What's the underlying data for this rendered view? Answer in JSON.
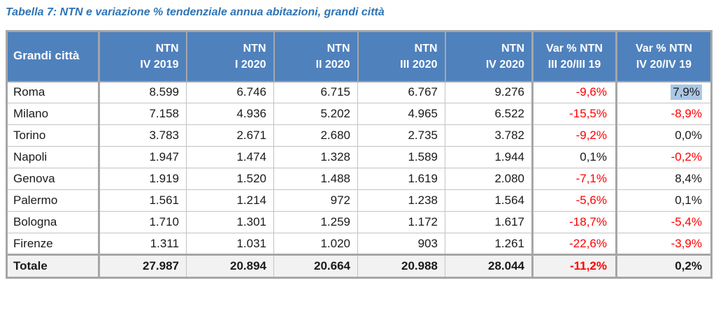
{
  "colors": {
    "header_bg": "#4F81BD",
    "header_text": "#FFFFFF",
    "title_text": "#2E74B5",
    "negative_text": "#FF0000",
    "highlight_bg": "#A9C7E4",
    "border_thick": "#A6A6A6",
    "border_thin": "#C3C3C3",
    "total_bg": "#F2F2F2"
  },
  "chart_data": {
    "type": "table",
    "title": "Tabella 7: NTN e variazione % tendenziale annua abitazioni, grandi città",
    "header": {
      "city": "Grandi città",
      "cols": [
        {
          "l1": "NTN",
          "l2": "IV 2019"
        },
        {
          "l1": "NTN",
          "l2": "I 2020"
        },
        {
          "l1": "NTN",
          "l2": "II 2020"
        },
        {
          "l1": "NTN",
          "l2": "III 2020"
        },
        {
          "l1": "NTN",
          "l2": "IV 2020"
        },
        {
          "l1": "Var % NTN",
          "l2": "III 20/III 19"
        },
        {
          "l1": "Var % NTN",
          "l2": "IV 20/IV 19"
        }
      ]
    },
    "rows": [
      {
        "city": "Roma",
        "ntn": [
          "8.599",
          "6.746",
          "6.715",
          "6.767",
          "9.276"
        ],
        "var3": {
          "text": "-9,6%",
          "neg": true
        },
        "var4": {
          "text": "7,9%",
          "neg": false,
          "hl": true
        }
      },
      {
        "city": "Milano",
        "ntn": [
          "7.158",
          "4.936",
          "5.202",
          "4.965",
          "6.522"
        ],
        "var3": {
          "text": "-15,5%",
          "neg": true
        },
        "var4": {
          "text": "-8,9%",
          "neg": true
        }
      },
      {
        "city": "Torino",
        "ntn": [
          "3.783",
          "2.671",
          "2.680",
          "2.735",
          "3.782"
        ],
        "var3": {
          "text": "-9,2%",
          "neg": true
        },
        "var4": {
          "text": "0,0%",
          "neg": false
        }
      },
      {
        "city": "Napoli",
        "ntn": [
          "1.947",
          "1.474",
          "1.328",
          "1.589",
          "1.944"
        ],
        "var3": {
          "text": "0,1%",
          "neg": false
        },
        "var4": {
          "text": "-0,2%",
          "neg": true
        }
      },
      {
        "city": "Genova",
        "ntn": [
          "1.919",
          "1.520",
          "1.488",
          "1.619",
          "2.080"
        ],
        "var3": {
          "text": "-7,1%",
          "neg": true
        },
        "var4": {
          "text": "8,4%",
          "neg": false
        }
      },
      {
        "city": "Palermo",
        "ntn": [
          "1.561",
          "1.214",
          "972",
          "1.238",
          "1.564"
        ],
        "var3": {
          "text": "-5,6%",
          "neg": true
        },
        "var4": {
          "text": "0,1%",
          "neg": false
        }
      },
      {
        "city": "Bologna",
        "ntn": [
          "1.710",
          "1.301",
          "1.259",
          "1.172",
          "1.617"
        ],
        "var3": {
          "text": "-18,7%",
          "neg": true
        },
        "var4": {
          "text": "-5,4%",
          "neg": true
        }
      },
      {
        "city": "Firenze",
        "ntn": [
          "1.311",
          "1.031",
          "1.020",
          "903",
          "1.261"
        ],
        "var3": {
          "text": "-22,6%",
          "neg": true
        },
        "var4": {
          "text": "-3,9%",
          "neg": true
        }
      }
    ],
    "total": {
      "city": "Totale",
      "ntn": [
        "27.987",
        "20.894",
        "20.664",
        "20.988",
        "28.044"
      ],
      "var3": {
        "text": "-11,2%",
        "neg": true
      },
      "var4": {
        "text": "0,2%",
        "neg": false
      }
    }
  }
}
